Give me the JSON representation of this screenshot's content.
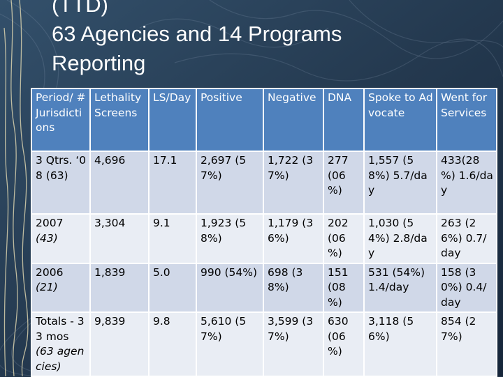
{
  "slide": {
    "title_lines": [
      "(TTD)",
      "63 Agencies and 14 Programs",
      "Reporting"
    ],
    "colors": {
      "background": "#1f3247",
      "header": "#4f81bd",
      "row_dark": "#d0d8e8",
      "row_light": "#e9edf4"
    }
  },
  "table": {
    "headers": [
      "Period/ # Jurisdictions",
      "Lethality Screens",
      "LS/Day",
      "Positive",
      "Negative",
      "DNA",
      "Spoke to Advocate",
      "Went for Services"
    ],
    "rows": [
      {
        "period": "3 Qtrs. ‘08 (63)",
        "lethality": "4,696",
        "ls_day": "17.1",
        "positive": "2,697 (57%)",
        "negative": "1,722 (37%)",
        "dna": "277 (06 %)",
        "advocate": "1,557 (58%) 5.7/day",
        "services": "433(28 %) 1.6/day"
      },
      {
        "period": "2007",
        "period_sub": "(43)",
        "lethality": "3,304",
        "ls_day": "9.1",
        "positive": "1,923 (58%)",
        "negative": "1,179 (36%)",
        "dna": "202 (06 %)",
        "advocate": "1,030 (54%) 2.8/day",
        "services": "263 (26%) 0.7/day"
      },
      {
        "period": "2006",
        "period_sub": "(21)",
        "lethality": "1,839",
        "ls_day": "5.0",
        "positive": "990 (54%)",
        "negative": "698 (38%)",
        "dna": "151 (08 %)",
        "advocate": "531 (54%) 1.4/day",
        "services": "158 (30%) 0.4/day"
      },
      {
        "period": "Totals - 33 mos",
        "period_sub": "(63 agencies)",
        "lethality": "9,839",
        "ls_day": "9.8",
        "positive": "5,610 (57%)",
        "negative": "3,599 (37%)",
        "dna": "630 (06 %)",
        "advocate": "3,118 (56%)",
        "services": "854 (27%)"
      }
    ]
  }
}
